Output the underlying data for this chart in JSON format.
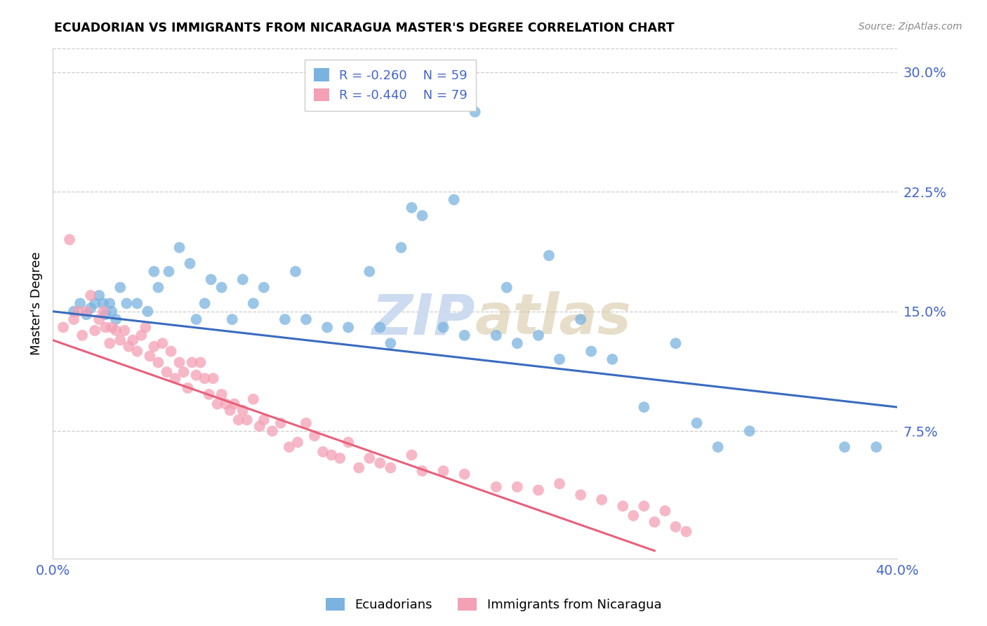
{
  "title": "ECUADORIAN VS IMMIGRANTS FROM NICARAGUA MASTER'S DEGREE CORRELATION CHART",
  "source": "Source: ZipAtlas.com",
  "ylabel": "Master's Degree",
  "xmin": 0.0,
  "xmax": 0.4,
  "ymin": -0.005,
  "ymax": 0.315,
  "yticks": [
    0.0,
    0.075,
    0.15,
    0.225,
    0.3
  ],
  "ytick_labels": [
    "",
    "7.5%",
    "15.0%",
    "22.5%",
    "30.0%"
  ],
  "blue_R": -0.26,
  "blue_N": 59,
  "pink_R": -0.44,
  "pink_N": 79,
  "blue_color": "#7ab3e0",
  "pink_color": "#f4a0b5",
  "blue_line_color": "#3a6bbf",
  "pink_line_color": "#e8607a",
  "tick_label_color": "#4466cc",
  "watermark_color": "#c8d8f0",
  "blue_line_x0": 0.0,
  "blue_line_x1": 0.4,
  "blue_line_y0": 0.15,
  "blue_line_y1": 0.09,
  "pink_line_x0": 0.0,
  "pink_line_x1": 0.285,
  "pink_line_y0": 0.132,
  "pink_line_y1": 0.0,
  "blue_scatter_x": [
    0.01,
    0.013,
    0.016,
    0.018,
    0.02,
    0.022,
    0.024,
    0.025,
    0.027,
    0.028,
    0.03,
    0.032,
    0.035,
    0.04,
    0.045,
    0.048,
    0.05,
    0.055,
    0.06,
    0.065,
    0.068,
    0.072,
    0.075,
    0.08,
    0.085,
    0.09,
    0.095,
    0.1,
    0.11,
    0.115,
    0.12,
    0.13,
    0.14,
    0.15,
    0.155,
    0.16,
    0.165,
    0.17,
    0.175,
    0.185,
    0.19,
    0.195,
    0.2,
    0.21,
    0.215,
    0.22,
    0.23,
    0.235,
    0.24,
    0.25,
    0.255,
    0.265,
    0.28,
    0.295,
    0.305,
    0.315,
    0.33,
    0.375,
    0.39
  ],
  "blue_scatter_y": [
    0.15,
    0.155,
    0.148,
    0.152,
    0.155,
    0.16,
    0.155,
    0.148,
    0.155,
    0.15,
    0.145,
    0.165,
    0.155,
    0.155,
    0.15,
    0.175,
    0.165,
    0.175,
    0.19,
    0.18,
    0.145,
    0.155,
    0.17,
    0.165,
    0.145,
    0.17,
    0.155,
    0.165,
    0.145,
    0.175,
    0.145,
    0.14,
    0.14,
    0.175,
    0.14,
    0.13,
    0.19,
    0.215,
    0.21,
    0.14,
    0.22,
    0.135,
    0.275,
    0.135,
    0.165,
    0.13,
    0.135,
    0.185,
    0.12,
    0.145,
    0.125,
    0.12,
    0.09,
    0.13,
    0.08,
    0.065,
    0.075,
    0.065,
    0.065
  ],
  "pink_scatter_x": [
    0.005,
    0.008,
    0.01,
    0.012,
    0.014,
    0.016,
    0.018,
    0.02,
    0.022,
    0.024,
    0.025,
    0.027,
    0.028,
    0.03,
    0.032,
    0.034,
    0.036,
    0.038,
    0.04,
    0.042,
    0.044,
    0.046,
    0.048,
    0.05,
    0.052,
    0.054,
    0.056,
    0.058,
    0.06,
    0.062,
    0.064,
    0.066,
    0.068,
    0.07,
    0.072,
    0.074,
    0.076,
    0.078,
    0.08,
    0.082,
    0.084,
    0.086,
    0.088,
    0.09,
    0.092,
    0.095,
    0.098,
    0.1,
    0.104,
    0.108,
    0.112,
    0.116,
    0.12,
    0.124,
    0.128,
    0.132,
    0.136,
    0.14,
    0.145,
    0.15,
    0.155,
    0.16,
    0.17,
    0.175,
    0.185,
    0.195,
    0.21,
    0.22,
    0.23,
    0.24,
    0.25,
    0.26,
    0.27,
    0.275,
    0.28,
    0.285,
    0.29,
    0.295,
    0.3
  ],
  "pink_scatter_y": [
    0.14,
    0.195,
    0.145,
    0.15,
    0.135,
    0.15,
    0.16,
    0.138,
    0.145,
    0.15,
    0.14,
    0.13,
    0.14,
    0.138,
    0.132,
    0.138,
    0.128,
    0.132,
    0.125,
    0.135,
    0.14,
    0.122,
    0.128,
    0.118,
    0.13,
    0.112,
    0.125,
    0.108,
    0.118,
    0.112,
    0.102,
    0.118,
    0.11,
    0.118,
    0.108,
    0.098,
    0.108,
    0.092,
    0.098,
    0.092,
    0.088,
    0.092,
    0.082,
    0.088,
    0.082,
    0.095,
    0.078,
    0.082,
    0.075,
    0.08,
    0.065,
    0.068,
    0.08,
    0.072,
    0.062,
    0.06,
    0.058,
    0.068,
    0.052,
    0.058,
    0.055,
    0.052,
    0.06,
    0.05,
    0.05,
    0.048,
    0.04,
    0.04,
    0.038,
    0.042,
    0.035,
    0.032,
    0.028,
    0.022,
    0.028,
    0.018,
    0.025,
    0.015,
    0.012
  ]
}
